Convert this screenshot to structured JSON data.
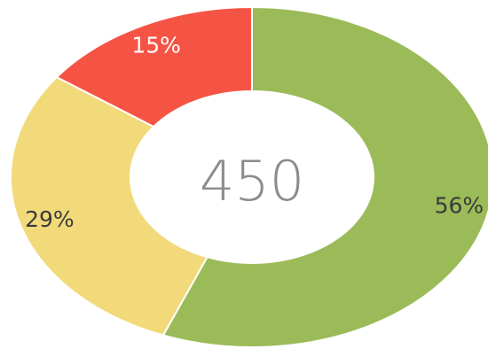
{
  "chart_data": {
    "type": "pie",
    "variant": "donut",
    "center_label": "450",
    "slices": [
      {
        "value": 56,
        "label": "56%",
        "color": "#9bbb59",
        "label_color": "#3a3a3a"
      },
      {
        "value": 29,
        "label": "29%",
        "color": "#f2da7a",
        "label_color": "#3a3a3a"
      },
      {
        "value": 15,
        "label": "15%",
        "color": "#f55445",
        "label_color": "#ffffff"
      }
    ],
    "start_angle_deg": 0,
    "direction": "clockwise",
    "center_label_color": "#8c8c8c"
  }
}
